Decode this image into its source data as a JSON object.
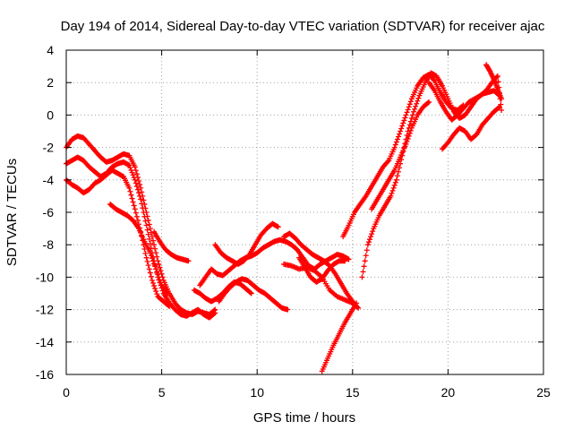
{
  "chart_data": {
    "type": "scatter",
    "title": "Day 194 of 2014, Sidereal Day-to-day VTEC variation (SDTVAR) for receiver ajac",
    "xlabel": "GPS time / hours",
    "ylabel": "SDTVAR / TECUs",
    "xlim": [
      0,
      25
    ],
    "ylim": [
      -16,
      4
    ],
    "xticks": [
      0,
      5,
      10,
      15,
      20,
      25
    ],
    "yticks": [
      -16,
      -14,
      -12,
      -10,
      -8,
      -6,
      -4,
      -2,
      0,
      2,
      4
    ],
    "grid": true,
    "marker": "+",
    "color": "#ff0000",
    "series": [
      {
        "x": [
          0.0,
          0.3,
          0.6,
          0.9,
          1.2,
          1.5,
          1.8,
          2.1,
          2.4,
          2.7,
          3.0,
          3.3,
          3.6,
          3.9,
          4.2,
          4.5,
          4.8,
          5.1,
          5.4,
          5.7,
          6.0,
          6.3,
          6.6,
          6.9,
          7.2,
          7.5,
          7.8
        ],
        "y": [
          -2.0,
          -1.5,
          -1.3,
          -1.4,
          -1.8,
          -2.2,
          -2.6,
          -2.9,
          -2.8,
          -2.6,
          -2.4,
          -2.5,
          -3.2,
          -4.5,
          -6.0,
          -7.5,
          -9.0,
          -10.2,
          -11.0,
          -11.6,
          -12.0,
          -12.2,
          -12.3,
          -12.1,
          -12.2,
          -12.3,
          -12.0
        ]
      },
      {
        "x": [
          0.0,
          0.3,
          0.6,
          0.9,
          1.2,
          1.5,
          1.8,
          2.1,
          2.4,
          2.7,
          3.0,
          3.3,
          3.6,
          3.9,
          4.2,
          4.5,
          4.8,
          5.1,
          5.4,
          5.7,
          6.0,
          6.3,
          6.6,
          6.9,
          7.2,
          7.5,
          7.8
        ],
        "y": [
          -3.0,
          -2.8,
          -2.6,
          -2.8,
          -3.2,
          -3.5,
          -3.8,
          -3.6,
          -3.2,
          -3.0,
          -2.9,
          -3.1,
          -4.0,
          -5.2,
          -6.8,
          -8.5,
          -10.0,
          -11.0,
          -11.6,
          -12.0,
          -12.3,
          -12.4,
          -12.2,
          -12.0,
          -12.3,
          -12.5,
          -12.2
        ]
      },
      {
        "x": [
          0.0,
          0.3,
          0.6,
          0.9,
          1.2,
          1.5,
          1.8,
          2.1,
          2.4,
          2.7,
          3.0,
          3.3,
          3.6,
          3.9,
          4.2,
          4.5,
          4.8,
          5.1,
          5.4
        ],
        "y": [
          -4.0,
          -4.3,
          -4.5,
          -4.8,
          -4.6,
          -4.2,
          -4.0,
          -3.7,
          -3.4,
          -3.6,
          -3.8,
          -4.5,
          -5.8,
          -7.2,
          -8.8,
          -10.2,
          -11.2,
          -11.5,
          -11.8
        ]
      },
      {
        "x": [
          2.3,
          2.6,
          2.9,
          3.2,
          3.5,
          3.8,
          4.1,
          4.4,
          4.7,
          5.0,
          5.3
        ],
        "y": [
          -5.5,
          -5.8,
          -6.0,
          -6.2,
          -6.5,
          -7.0,
          -7.8,
          -8.5,
          -9.5,
          -10.5,
          -11.0
        ]
      },
      {
        "x": [
          4.6,
          4.9,
          5.2,
          5.5,
          5.8,
          6.1,
          6.4
        ],
        "y": [
          -7.2,
          -7.8,
          -8.3,
          -8.6,
          -8.8,
          -8.9,
          -9.0
        ]
      },
      {
        "x": [
          7.0,
          7.3,
          7.6,
          7.9,
          8.2,
          8.5,
          8.8,
          9.1,
          9.4,
          9.7,
          10.0,
          10.3,
          10.6,
          10.9,
          11.2,
          11.5,
          11.8,
          12.1,
          12.4,
          12.7,
          13.0,
          13.3,
          13.6,
          13.9,
          14.2,
          14.5,
          14.8
        ],
        "y": [
          -10.5,
          -10.0,
          -9.5,
          -9.8,
          -9.9,
          -9.6,
          -9.3,
          -9.0,
          -8.8,
          -8.7,
          -8.5,
          -8.2,
          -8.0,
          -7.8,
          -7.7,
          -7.8,
          -8.0,
          -8.3,
          -8.8,
          -9.3,
          -9.5,
          -9.2,
          -9.0,
          -8.8,
          -8.6,
          -8.7,
          -8.9
        ]
      },
      {
        "x": [
          7.8,
          8.1,
          8.4,
          8.7,
          9.0,
          9.3,
          9.6,
          9.9,
          10.2,
          10.5,
          10.8,
          11.1
        ],
        "y": [
          -8.0,
          -8.5,
          -8.8,
          -9.0,
          -9.2,
          -9.0,
          -8.6,
          -8.0,
          -7.4,
          -7.0,
          -6.7,
          -6.9
        ]
      },
      {
        "x": [
          8.0,
          8.3,
          8.6,
          8.9,
          9.2,
          9.5,
          9.8,
          10.1,
          10.4,
          10.7,
          11.0,
          11.3,
          11.6
        ],
        "y": [
          -11.5,
          -11.0,
          -10.6,
          -10.3,
          -10.1,
          -10.2,
          -10.5,
          -10.8,
          -11.0,
          -11.3,
          -11.6,
          -11.9,
          -12.0
        ]
      },
      {
        "x": [
          6.7,
          7.0,
          7.3,
          7.6,
          7.9,
          8.2,
          8.5,
          8.8,
          9.1,
          9.4,
          9.7
        ],
        "y": [
          -10.8,
          -11.0,
          -11.3,
          -11.5,
          -11.3,
          -11.0,
          -10.6,
          -10.3,
          -10.4,
          -10.7,
          -11.0
        ]
      },
      {
        "x": [
          11.4,
          11.7,
          12.0,
          12.3,
          12.6,
          12.9,
          13.2,
          13.5,
          13.8,
          14.1,
          14.4,
          14.7,
          15.0,
          15.2
        ],
        "y": [
          -7.5,
          -7.3,
          -7.6,
          -8.0,
          -8.3,
          -8.6,
          -8.8,
          -9.0,
          -9.3,
          -9.8,
          -10.4,
          -11.0,
          -11.5,
          -11.8
        ]
      },
      {
        "x": [
          11.4,
          11.8,
          12.2,
          12.6,
          13.0,
          13.4,
          13.8,
          14.2,
          14.6,
          15.0,
          15.3
        ],
        "y": [
          -9.2,
          -9.3,
          -9.5,
          -9.4,
          -9.6,
          -10.0,
          -10.8,
          -11.2,
          -11.4,
          -11.6,
          -11.9
        ]
      },
      {
        "x": [
          12.2,
          12.5,
          12.8,
          13.1,
          13.4,
          13.7,
          14.0,
          14.3,
          14.6
        ],
        "y": [
          -8.8,
          -9.4,
          -10.0,
          -10.3,
          -10.1,
          -9.6,
          -9.2,
          -9.0,
          -9.0
        ]
      },
      {
        "x": [
          13.4,
          13.7,
          14.0,
          14.3,
          14.6,
          14.9,
          15.2
        ],
        "y": [
          -15.8,
          -15.0,
          -14.2,
          -13.5,
          -12.8,
          -12.2,
          -11.6
        ]
      },
      {
        "x": [
          14.5,
          14.8,
          15.1,
          15.4,
          15.7,
          16.0,
          16.3,
          16.6,
          16.9,
          17.2,
          17.5,
          17.8,
          18.1,
          18.4,
          18.7,
          19.0,
          19.3,
          19.6,
          19.9,
          20.2,
          20.5,
          20.8
        ],
        "y": [
          -7.5,
          -6.8,
          -6.0,
          -5.5,
          -5.0,
          -4.4,
          -3.8,
          -3.2,
          -2.8,
          -2.0,
          -1.0,
          0.0,
          1.0,
          1.8,
          2.3,
          2.5,
          2.1,
          1.4,
          0.8,
          0.4,
          0.3,
          0.6
        ]
      },
      {
        "x": [
          15.5,
          15.8,
          16.1,
          16.4,
          16.7,
          17.0,
          17.3,
          17.6,
          17.9,
          18.2,
          18.5,
          18.8,
          19.1,
          19.4,
          19.7,
          20.0,
          20.3,
          20.6,
          20.9,
          21.2,
          21.5,
          21.8,
          22.1,
          22.4,
          22.7
        ],
        "y": [
          -10.0,
          -8.0,
          -7.0,
          -6.2,
          -5.6,
          -5.0,
          -4.0,
          -2.5,
          -1.0,
          0.2,
          1.2,
          2.0,
          2.6,
          2.4,
          1.8,
          1.0,
          0.2,
          -0.2,
          0.0,
          0.5,
          1.0,
          1.3,
          1.4,
          1.5,
          1.2
        ]
      },
      {
        "x": [
          16.0,
          16.3,
          16.6,
          16.9,
          17.2,
          17.5,
          17.8,
          18.1,
          18.4,
          18.7,
          19.0
        ],
        "y": [
          -5.8,
          -5.2,
          -4.6,
          -4.0,
          -3.4,
          -2.6,
          -1.8,
          -0.8,
          0.0,
          0.5,
          0.8
        ]
      },
      {
        "x": [
          19.7,
          20.0,
          20.3,
          20.6,
          20.9,
          21.2,
          21.5,
          21.8,
          22.1,
          22.4,
          22.7
        ],
        "y": [
          -2.1,
          -1.7,
          -1.2,
          -0.8,
          -1.0,
          -1.5,
          -1.2,
          -0.6,
          -0.2,
          0.2,
          0.5
        ]
      },
      {
        "x": [
          19.0,
          19.3,
          19.6,
          19.9,
          20.2,
          20.5,
          20.8,
          21.1,
          21.4,
          21.7,
          22.0,
          22.3,
          22.6,
          22.8
        ],
        "y": [
          2.0,
          1.5,
          0.8,
          0.2,
          -0.3,
          0.0,
          0.4,
          0.8,
          1.0,
          1.2,
          1.5,
          2.0,
          2.4,
          0.3
        ]
      },
      {
        "x": [
          22.0,
          22.2,
          22.4,
          22.6,
          22.8
        ],
        "y": [
          3.1,
          2.7,
          2.2,
          1.6,
          1.0
        ]
      }
    ]
  }
}
